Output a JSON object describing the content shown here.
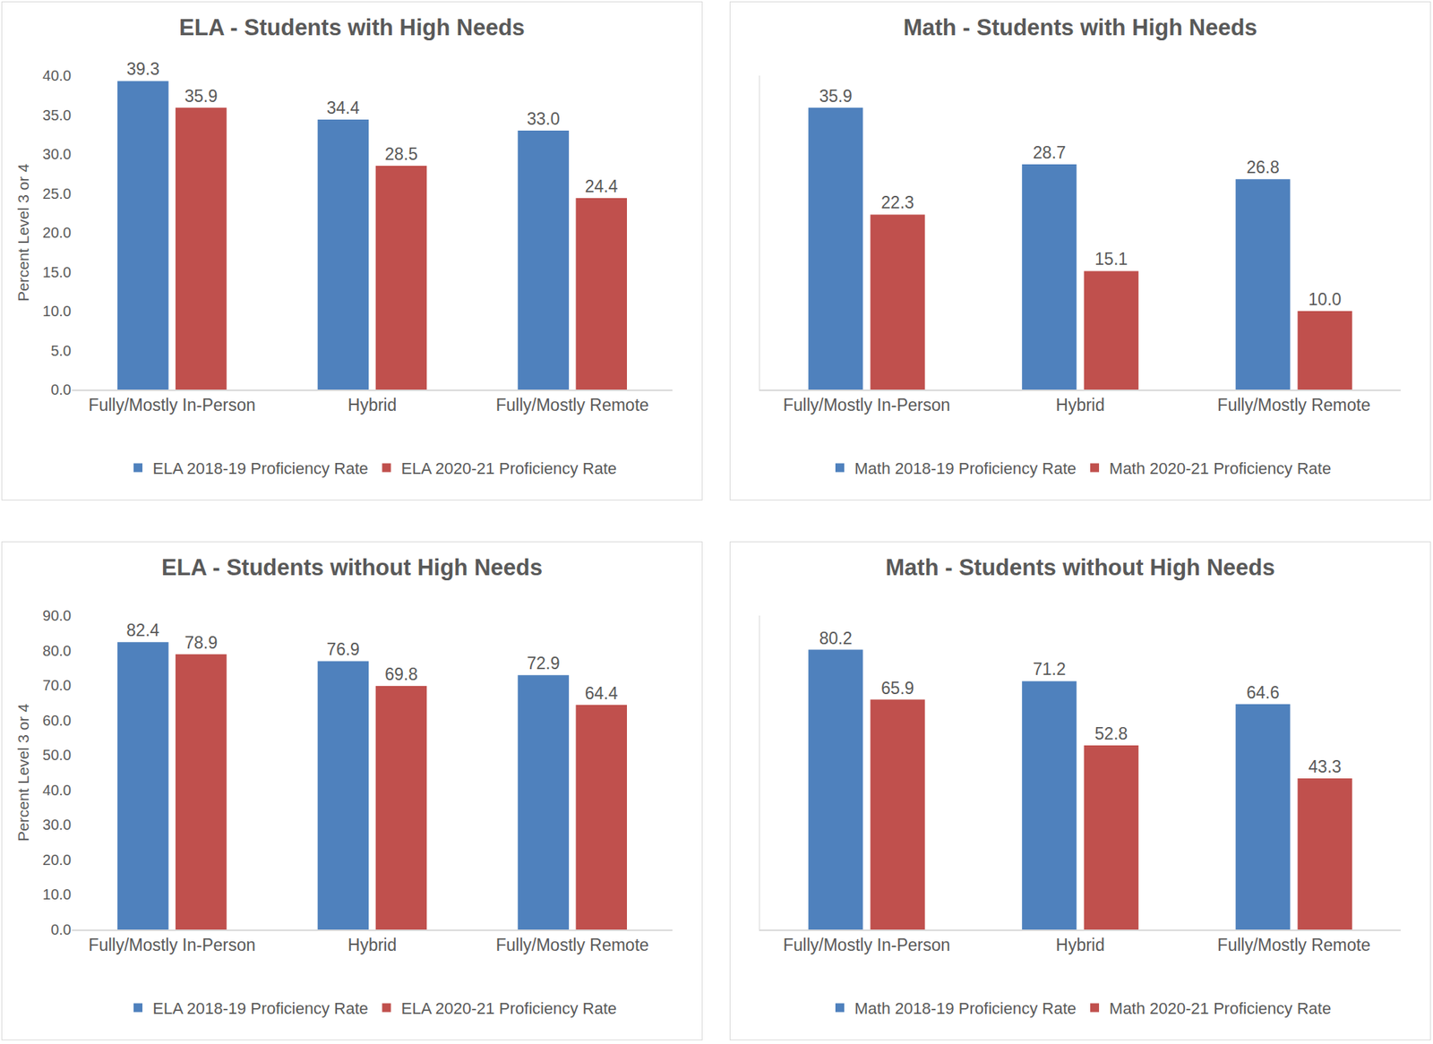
{
  "chart_data": [
    {
      "type": "bar",
      "title": "ELA - Students with High Needs",
      "ylabel": "Percent Level 3 or 4",
      "categories": [
        "Fully/Mostly In-Person",
        "Hybrid",
        "Fully/Mostly Remote"
      ],
      "series": [
        {
          "name": "ELA 2018-19 Proficiency Rate",
          "color": "#4f81bd",
          "values": [
            39.3,
            34.4,
            33.0
          ],
          "value_labels": [
            "39.3",
            "34.4",
            "33.0"
          ]
        },
        {
          "name": "ELA 2020-21 Proficiency Rate",
          "color": "#c0504d",
          "values": [
            35.9,
            28.5,
            24.4
          ],
          "value_labels": [
            "35.9",
            "28.5",
            "24.4"
          ]
        }
      ],
      "ylim": [
        0,
        40
      ],
      "yticks": [
        {
          "value": 0,
          "label": "0.0"
        },
        {
          "value": 5,
          "label": "5.0"
        },
        {
          "value": 10,
          "label": "10.0"
        },
        {
          "value": 15,
          "label": "15.0"
        },
        {
          "value": 20,
          "label": "20.0"
        },
        {
          "value": 25,
          "label": "25.0"
        },
        {
          "value": 30,
          "label": "30.0"
        },
        {
          "value": 35,
          "label": "35.0"
        },
        {
          "value": 40,
          "label": "40.0"
        }
      ],
      "grid": false,
      "legend": "bottom",
      "data_labels": true
    },
    {
      "type": "bar",
      "title": "Math - Students with High Needs",
      "categories": [
        "Fully/Mostly In-Person",
        "Hybrid",
        "Fully/Mostly Remote"
      ],
      "series": [
        {
          "name": "Math 2018-19 Proficiency Rate",
          "color": "#4f81bd",
          "values": [
            35.9,
            28.7,
            26.8
          ],
          "value_labels": [
            "35.9",
            "28.7",
            "26.8"
          ]
        },
        {
          "name": "Math 2020-21 Proficiency Rate",
          "color": "#c0504d",
          "values": [
            22.3,
            15.1,
            10.0
          ],
          "value_labels": [
            "22.3",
            "15.1",
            "10.0"
          ]
        }
      ],
      "ylim": [
        0,
        40
      ],
      "grid": false,
      "legend": "bottom",
      "data_labels": true,
      "tick_labels": "x"
    },
    {
      "type": "bar",
      "title": "ELA - Students without High Needs",
      "ylabel": "Percent Level 3 or 4",
      "categories": [
        "Fully/Mostly In-Person",
        "Hybrid",
        "Fully/Mostly Remote"
      ],
      "series": [
        {
          "name": "ELA 2018-19 Proficiency Rate",
          "color": "#4f81bd",
          "values": [
            82.4,
            76.9,
            72.9
          ],
          "value_labels": [
            "82.4",
            "76.9",
            "72.9"
          ]
        },
        {
          "name": "ELA 2020-21 Proficiency Rate",
          "color": "#c0504d",
          "values": [
            78.9,
            69.8,
            64.4
          ],
          "value_labels": [
            "78.9",
            "69.8",
            "64.4"
          ]
        }
      ],
      "ylim": [
        0,
        90
      ],
      "yticks": [
        {
          "value": 0,
          "label": "0.0"
        },
        {
          "value": 10,
          "label": "10.0"
        },
        {
          "value": 20,
          "label": "20.0"
        },
        {
          "value": 30,
          "label": "30.0"
        },
        {
          "value": 40,
          "label": "40.0"
        },
        {
          "value": 50,
          "label": "50.0"
        },
        {
          "value": 60,
          "label": "60.0"
        },
        {
          "value": 70,
          "label": "70.0"
        },
        {
          "value": 80,
          "label": "80.0"
        },
        {
          "value": 90,
          "label": "90.0"
        }
      ],
      "grid": false,
      "legend": "bottom",
      "data_labels": true
    },
    {
      "type": "bar",
      "title": "Math - Students without High Needs",
      "categories": [
        "Fully/Mostly In-Person",
        "Hybrid",
        "Fully/Mostly Remote"
      ],
      "series": [
        {
          "name": "Math 2018-19 Proficiency Rate",
          "color": "#4f81bd",
          "values": [
            80.2,
            71.2,
            64.6
          ],
          "value_labels": [
            "80.2",
            "71.2",
            "64.6"
          ]
        },
        {
          "name": "Math 2020-21 Proficiency Rate",
          "color": "#c0504d",
          "values": [
            65.9,
            52.8,
            43.3
          ],
          "value_labels": [
            "65.9",
            "52.8",
            "43.3"
          ]
        }
      ],
      "ylim": [
        0,
        90
      ],
      "grid": false,
      "legend": "bottom",
      "data_labels": true,
      "tick_labels": "x"
    }
  ]
}
